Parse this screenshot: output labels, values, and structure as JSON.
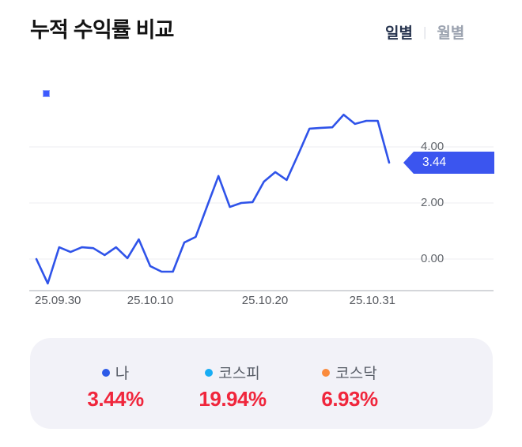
{
  "header": {
    "title": "누적 수익률 비교",
    "tabs": [
      {
        "label": "일별",
        "active": true
      },
      {
        "label": "월별",
        "active": false
      }
    ],
    "tab_divider": "|"
  },
  "colors": {
    "line_blue": "#2F53E9",
    "badge_blue": "#3B55EF",
    "legend_marker_blue": "#3D5AFE",
    "kospi_cyan": "#18ADF4",
    "kosdaq_orange": "#FA8B3D",
    "value_red": "#F0263C",
    "panel_bg": "#F2F2F8"
  },
  "chart_data": {
    "type": "line",
    "title": "누적 수익률 비교",
    "xlabel": "",
    "ylabel": "",
    "ylim": [
      -1.2,
      5.7
    ],
    "grid": true,
    "legend_position": "top-left",
    "x": [
      "25.09.30",
      "25.10.01",
      "25.10.02",
      "25.10.03",
      "25.10.04",
      "25.10.05",
      "25.10.06",
      "25.10.07",
      "25.10.08",
      "25.10.09",
      "25.10.10",
      "25.10.11",
      "25.10.12",
      "25.10.13",
      "25.10.14",
      "25.10.15",
      "25.10.16",
      "25.10.17",
      "25.10.18",
      "25.10.19",
      "25.10.20",
      "25.10.21",
      "25.10.22",
      "25.10.23",
      "25.10.24",
      "25.10.25",
      "25.10.26",
      "25.10.27",
      "25.10.28",
      "25.10.29",
      "25.10.30",
      "25.10.31"
    ],
    "series": [
      {
        "name": "나",
        "color": "#2F53E9",
        "values": [
          0.0,
          -0.87,
          0.42,
          0.25,
          0.42,
          0.39,
          0.14,
          0.42,
          0.03,
          0.7,
          -0.25,
          -0.45,
          -0.45,
          0.59,
          0.79,
          1.88,
          2.96,
          1.86,
          2.0,
          2.03,
          2.76,
          3.1,
          2.82,
          3.72,
          4.65,
          4.68,
          4.7,
          5.15,
          4.82,
          4.93,
          4.93,
          3.44
        ]
      }
    ],
    "xticks": [
      "25.09.30",
      "25.10.10",
      "25.10.20",
      "25.10.31"
    ],
    "yticks": [
      "0.00",
      "2.00",
      "4.00"
    ],
    "ytick_values": [
      0,
      2,
      4
    ],
    "badge": {
      "value": "3.44"
    }
  },
  "summary": {
    "items": [
      {
        "label": "나",
        "value": "3.44%",
        "dot_color": "#2D5BE8"
      },
      {
        "label": "코스피",
        "value": "19.94%",
        "dot_color": "#18ADF4"
      },
      {
        "label": "코스닥",
        "value": "6.93%",
        "dot_color": "#FA8B3D"
      }
    ]
  }
}
